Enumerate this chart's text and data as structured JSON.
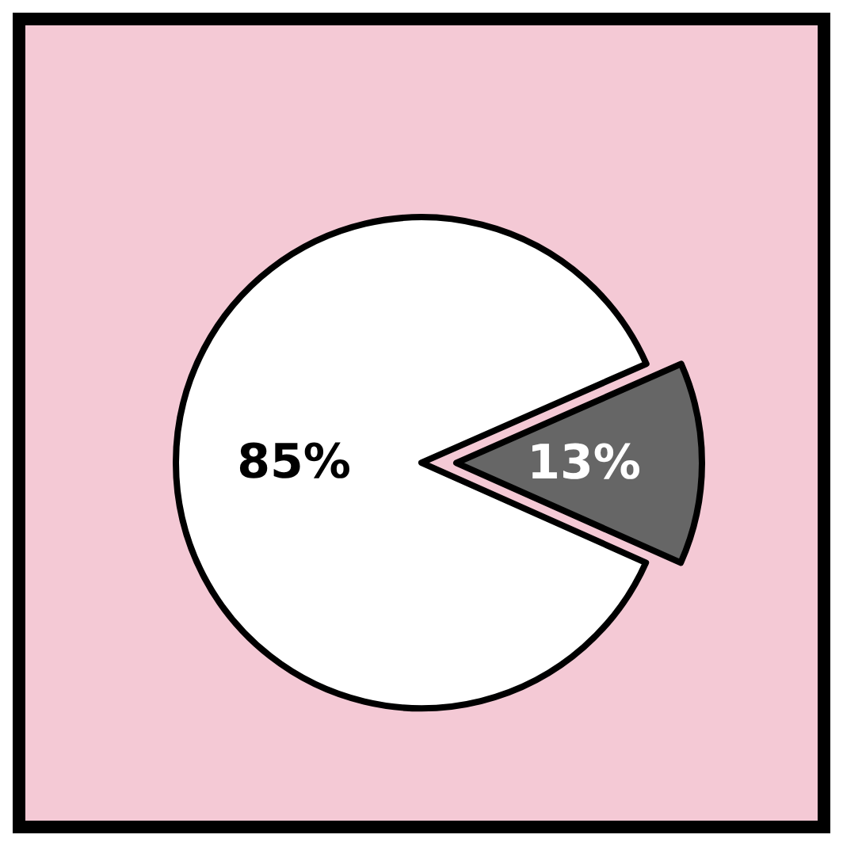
{
  "chart_data": {
    "type": "pie",
    "categories": [
      null,
      null
    ],
    "values": [
      85,
      13
    ],
    "colors": [
      "#ffffff",
      "#666666"
    ],
    "value_labels": [
      "85%",
      "13%"
    ]
  }
}
